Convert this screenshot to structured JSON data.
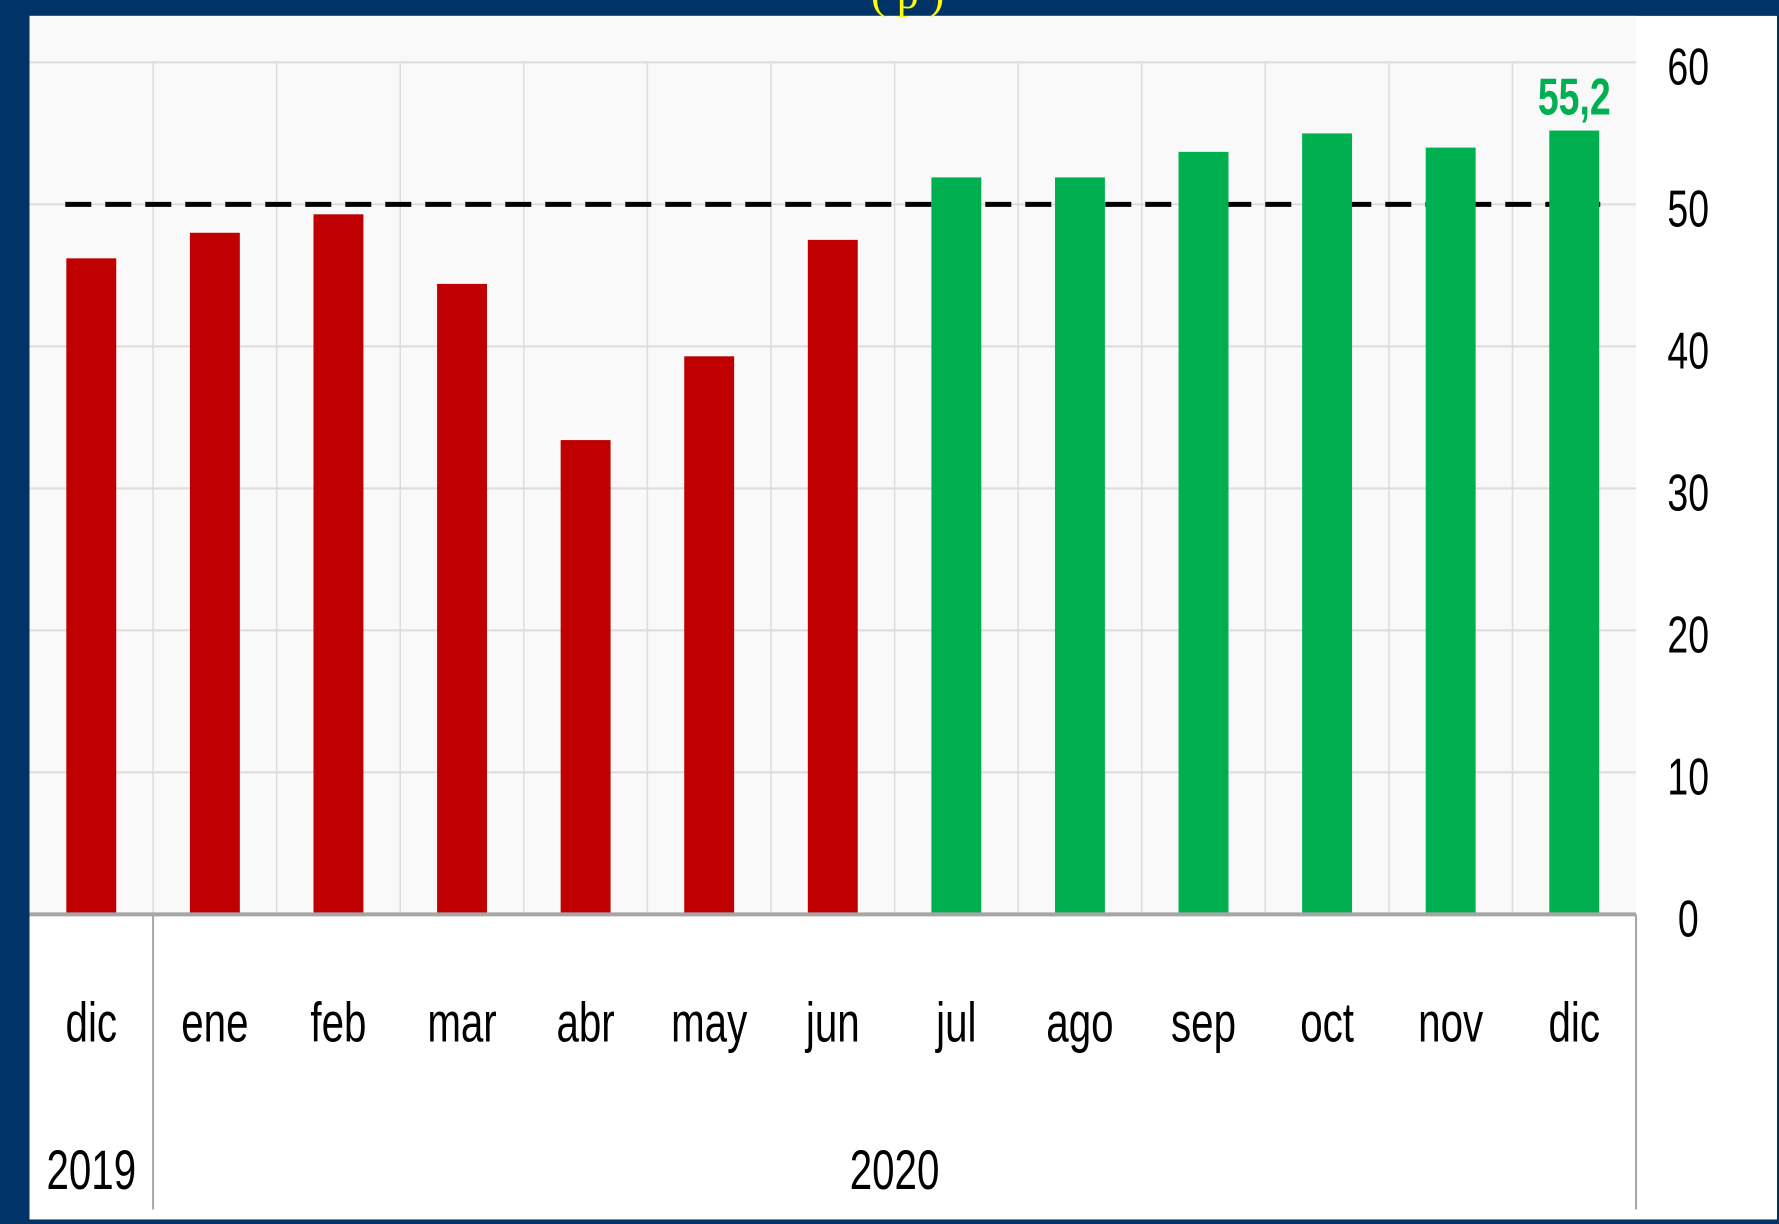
{
  "chart_data": {
    "type": "bar",
    "title_fragment": "(   p        )",
    "categories": [
      "dic",
      "ene",
      "feb",
      "mar",
      "abr",
      "may",
      "jun",
      "jul",
      "ago",
      "sep",
      "oct",
      "nov",
      "dic"
    ],
    "year_labels": [
      {
        "label": "2019",
        "span": [
          0,
          0
        ]
      },
      {
        "label": "2020",
        "span": [
          1,
          12
        ]
      }
    ],
    "values": [
      46.2,
      48.0,
      49.3,
      44.4,
      33.4,
      39.3,
      47.5,
      51.9,
      51.9,
      53.7,
      55.0,
      54.0,
      55.2
    ],
    "bar_colors": [
      "#c00000",
      "#c00000",
      "#c00000",
      "#c00000",
      "#c00000",
      "#c00000",
      "#c00000",
      "#00b050",
      "#00b050",
      "#00b050",
      "#00b050",
      "#00b050",
      "#00b050"
    ],
    "data_labels": [
      {
        "index": 12,
        "text": "55,2",
        "color": "#00b050"
      }
    ],
    "reference_line": {
      "value": 50,
      "style": "dashed",
      "color": "#000000"
    },
    "ylim": [
      0,
      60
    ],
    "yticks": [
      "0",
      "10",
      "20",
      "30",
      "40",
      "50",
      "60"
    ],
    "y_axis_side": "right",
    "grid": true,
    "legend": null
  },
  "colors": {
    "frame": "#003366",
    "title": "#ffff00",
    "plot_bg": "#f9f9f9",
    "gridline": "#dcdcdc"
  }
}
